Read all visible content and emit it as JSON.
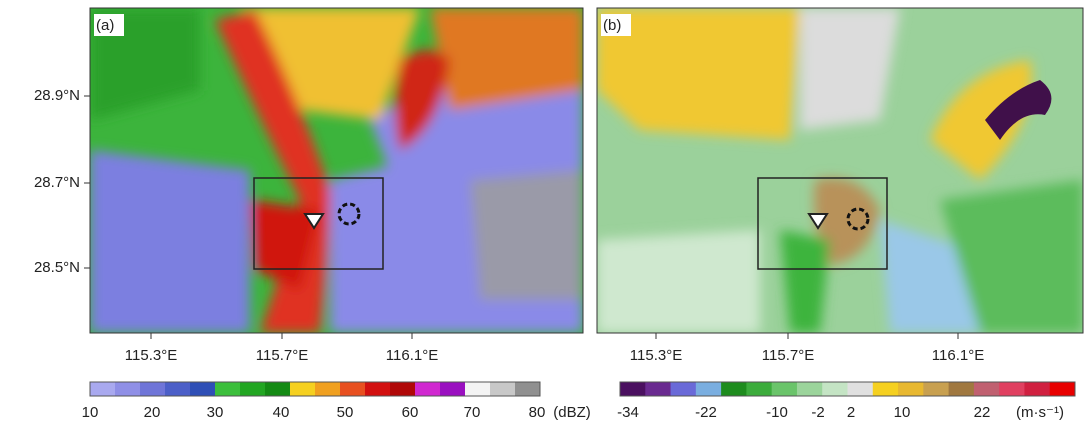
{
  "panels": [
    {
      "label": "(a)",
      "yticks": [
        "28.9°N",
        "28.7°N",
        "28.5°N"
      ],
      "xticks": [
        "115.3°E",
        "115.7°E",
        "116.1°E"
      ],
      "colorbar": {
        "ticks": [
          "10",
          "20",
          "30",
          "40",
          "50",
          "60",
          "70",
          "80"
        ],
        "unit": "(dBZ)"
      }
    },
    {
      "label": "(b)",
      "xticks": [
        "115.3°E",
        "115.7°E",
        "116.1°E"
      ],
      "colorbar": {
        "ticks": [
          "-34",
          "-22",
          "-10",
          "-2",
          "2",
          "10",
          "22"
        ],
        "unit": "(m·s⁻¹)"
      }
    }
  ]
}
